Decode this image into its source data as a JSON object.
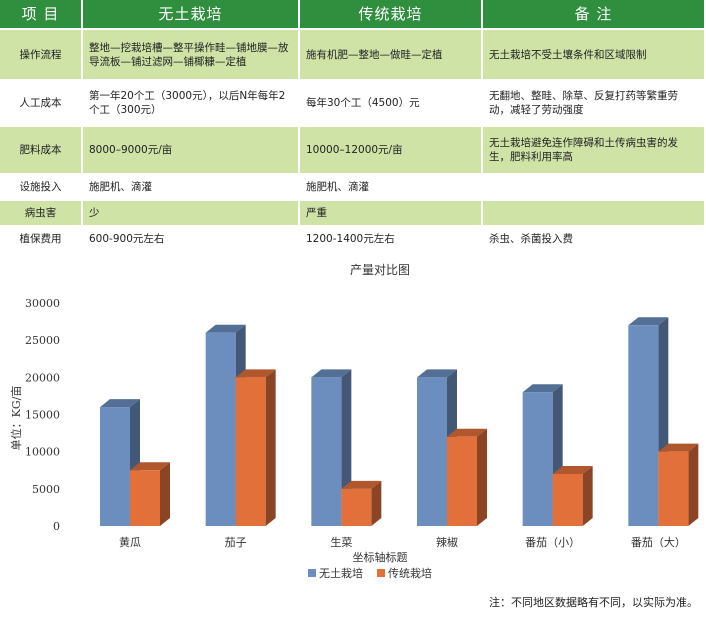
{
  "table": {
    "headers": [
      "项 目",
      "无土栽培",
      "传统栽培",
      "备 注"
    ],
    "rows": [
      {
        "item": "操作流程",
        "soilless": "整地—挖栽培槽—整平操作畦—铺地膜—放导流板—铺过滤网—铺椰糠—定植",
        "traditional": "施有机肥—整地—做畦—定植",
        "note": "无土栽培不受土壤条件和区域限制"
      },
      {
        "item": "人工成本",
        "soilless": "第一年20个工（3000元），以后N年每年2个工（300元）",
        "traditional": "每年30个工（4500）元",
        "note": "无翻地、整畦、除草、反复打药等繁重劳动，减轻了劳动强度"
      },
      {
        "item": "肥料成本",
        "soilless": "8000–9000元/亩",
        "traditional": "10000–12000元/亩",
        "note": "无土栽培避免连作障碍和土传病虫害的发生，肥料利用率高"
      },
      {
        "item": "设施投入",
        "soilless": "施肥机、滴灌",
        "traditional": "施肥机、滴灌",
        "note": ""
      },
      {
        "item": "病虫害",
        "soilless": "少",
        "traditional": "严重",
        "note": ""
      },
      {
        "item": "植保费用",
        "soilless": "600-900元左右",
        "traditional": "1200-1400元左右",
        "note": "杀虫、杀菌投入费"
      }
    ]
  },
  "chart_data": {
    "type": "bar",
    "title": "产量对比图",
    "xlabel": "坐标轴标题",
    "ylabel": "单位：KG/亩",
    "ylim": [
      0,
      30000
    ],
    "yticks": [
      0,
      5000,
      10000,
      15000,
      20000,
      25000,
      30000
    ],
    "grid": false,
    "legend_position": "bottom",
    "categories": [
      "黄瓜",
      "茄子",
      "生菜",
      "辣椒",
      "番茄（小）",
      "番茄（大）"
    ],
    "series": [
      {
        "name": "无土栽培",
        "color": "#6c8ebf",
        "values": [
          16000,
          26000,
          20000,
          20000,
          18000,
          27000
        ]
      },
      {
        "name": "传统栽培",
        "color": "#e2703a",
        "values": [
          7500,
          20000,
          5000,
          12000,
          7000,
          10000
        ]
      }
    ]
  },
  "footnote": "注：不同地区数据略有不同，以实际为准。"
}
